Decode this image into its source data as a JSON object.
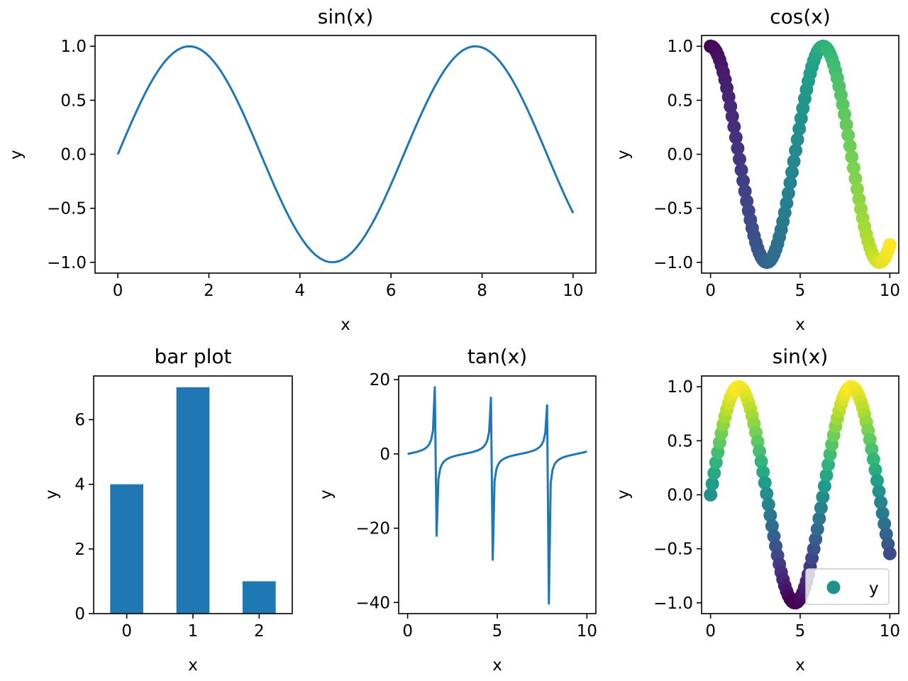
{
  "chart_data": [
    {
      "id": "sin1",
      "type": "line",
      "title": "sin(x)",
      "xlabel": "x",
      "ylabel": "y",
      "xlim": [
        -0.5,
        10.5
      ],
      "ylim": [
        -1.1,
        1.1
      ],
      "xticks": [
        0,
        2,
        4,
        6,
        8,
        10
      ],
      "xtick_labels": [
        "0",
        "2",
        "4",
        "6",
        "8",
        "10"
      ],
      "yticks": [
        1.0,
        0.5,
        0.0,
        -0.5,
        -1.0
      ],
      "ytick_labels": [
        "1.0",
        "0.5",
        "0.0",
        "−0.5",
        "−1.0"
      ],
      "series": [
        {
          "function": "sin",
          "x_range": [
            0,
            10
          ],
          "num_points": 100,
          "color": "#1f77b4"
        }
      ]
    },
    {
      "id": "cos",
      "type": "scatter",
      "title": "cos(x)",
      "xlabel": "x",
      "ylabel": "y",
      "xlim": [
        -0.5,
        10.5
      ],
      "ylim": [
        -1.1,
        1.1
      ],
      "xticks": [
        0,
        5,
        10
      ],
      "xtick_labels": [
        "0",
        "5",
        "10"
      ],
      "yticks": [
        1.0,
        0.5,
        0.0,
        -0.5,
        -1.0
      ],
      "ytick_labels": [
        "1.0",
        "0.5",
        "0.0",
        "−0.5",
        "−1.0"
      ],
      "series": [
        {
          "function": "cos",
          "x_range": [
            0,
            10
          ],
          "num_points": 100,
          "colormap": "viridis",
          "color_by": "x"
        }
      ]
    },
    {
      "id": "bar",
      "type": "bar",
      "title": "bar plot",
      "xlabel": "x",
      "ylabel": "y",
      "categories": [
        "0",
        "1",
        "2"
      ],
      "values": [
        4,
        7,
        1
      ],
      "xlim": [
        -0.5,
        2.5
      ],
      "ylim": [
        0,
        7.35
      ],
      "yticks": [
        6,
        4,
        2,
        0
      ],
      "ytick_labels": [
        "6",
        "4",
        "2",
        "0"
      ],
      "color": "#1f77b4"
    },
    {
      "id": "tan",
      "type": "line",
      "title": "tan(x)",
      "xlabel": "x",
      "ylabel": "y",
      "xlim": [
        -0.5,
        10.5
      ],
      "ylim": [
        -43,
        21
      ],
      "xticks": [
        0,
        5,
        10
      ],
      "xtick_labels": [
        "0",
        "5",
        "10"
      ],
      "yticks": [
        20,
        0,
        -20,
        -40
      ],
      "ytick_labels": [
        "20",
        "0",
        "−20",
        "−40"
      ],
      "series": [
        {
          "function": "tan",
          "x_range": [
            0,
            10
          ],
          "num_points": 100,
          "color": "#1f77b4"
        }
      ]
    },
    {
      "id": "sin2",
      "type": "scatter",
      "title": "sin(x)",
      "xlabel": "x",
      "ylabel": "y",
      "xlim": [
        -0.5,
        10.5
      ],
      "ylim": [
        -1.1,
        1.1
      ],
      "xticks": [
        0,
        5,
        10
      ],
      "xtick_labels": [
        "0",
        "5",
        "10"
      ],
      "yticks": [
        1.0,
        0.5,
        0.0,
        -0.5,
        -1.0
      ],
      "ytick_labels": [
        "1.0",
        "0.5",
        "0.0",
        "−0.5",
        "−1.0"
      ],
      "legend": {
        "location": "lower-right",
        "entries": [
          "y"
        ],
        "marker_color": "#21918c"
      },
      "series": [
        {
          "name": "y",
          "function": "sin",
          "x_range": [
            0,
            10
          ],
          "num_points": 100,
          "colormap": "viridis",
          "color_by": "y"
        }
      ]
    }
  ]
}
